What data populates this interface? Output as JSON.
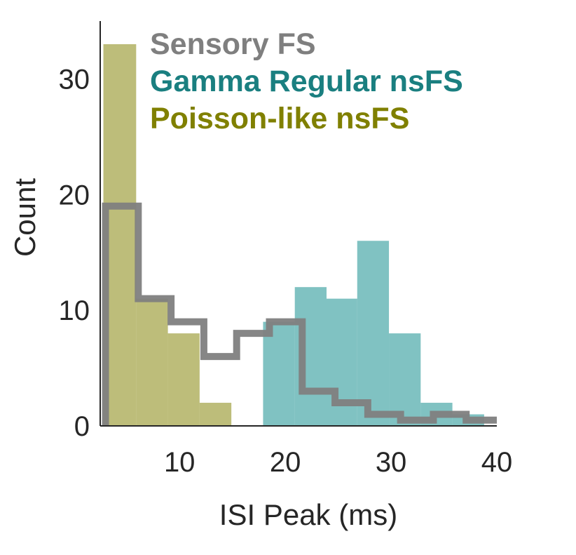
{
  "chart_data": {
    "type": "bar",
    "title": "",
    "xlabel": "ISI Peak (ms)",
    "ylabel": "Count",
    "xlim": [
      2.5,
      40
    ],
    "ylim": [
      0,
      35
    ],
    "xticks": [
      10,
      20,
      30,
      40
    ],
    "yticks": [
      0,
      10,
      20,
      30
    ],
    "legend_position": "top-right",
    "grid": false,
    "series": [
      {
        "name": "Poisson-like nsFS",
        "kind": "histogram",
        "color": "#9a9a33",
        "opacity": 0.65,
        "bin_edges": [
          2.8,
          5.9,
          8.9,
          11.9,
          14.9
        ],
        "counts": [
          33,
          11,
          8,
          2
        ]
      },
      {
        "name": "Gamma Regular nsFS",
        "kind": "histogram",
        "color": "#2b9a99",
        "opacity": 0.6,
        "bin_edges": [
          17.9,
          20.9,
          23.9,
          26.8,
          29.8,
          32.8,
          35.8,
          38.8
        ],
        "counts": [
          9,
          12,
          11,
          16,
          8,
          2,
          1
        ]
      },
      {
        "name": "Sensory FS",
        "kind": "step",
        "color": "#7f7f7f",
        "opacity": 1,
        "bin_edges": [
          3,
          6.1,
          9.2,
          12.3,
          15.4,
          18.5,
          21.6,
          24.7,
          27.8,
          30.9,
          34,
          37.1,
          40
        ],
        "counts": [
          19,
          11,
          9,
          6,
          8,
          9,
          3,
          2,
          1,
          0.5,
          1,
          0.5
        ]
      }
    ]
  }
}
